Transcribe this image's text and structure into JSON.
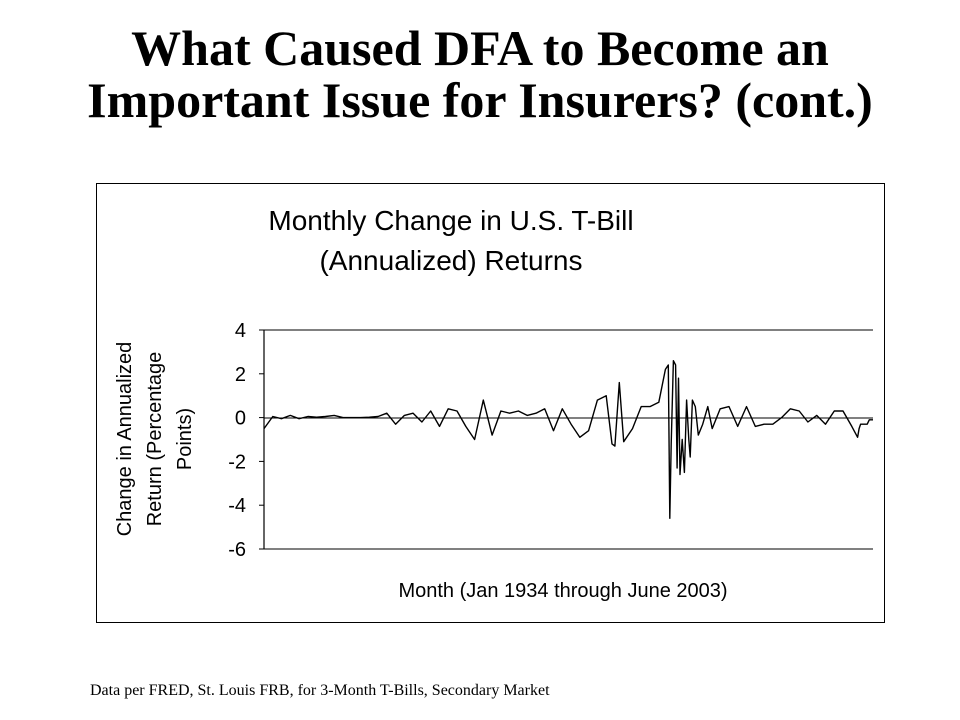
{
  "slide": {
    "title_line1": "What Caused DFA to Become an",
    "title_line2": "Important Issue for Insurers? (cont.)",
    "footnote": "Data per FRED, St. Louis FRB, for 3-Month T-Bills, Secondary Market"
  },
  "chart_data": {
    "type": "line",
    "title_line1": "Monthly Change in U.S. T-Bill",
    "title_line2": "(Annualized) Returns",
    "xlabel": "Month (Jan 1934 through June 2003)",
    "ylabel_lines": [
      "Change in Annualized",
      "Return (Percentage",
      "Points)"
    ],
    "ylim": [
      -6,
      4
    ],
    "yticks": [
      4,
      2,
      0,
      -2,
      -4,
      -6
    ],
    "ytick_labels": [
      "4",
      "2",
      "0",
      "-2",
      "-4",
      "-6"
    ],
    "x_start": "1934-01",
    "x_end": "2003-06",
    "grid": false,
    "legend": "none",
    "series": [
      {
        "color": "#000000",
        "x": [
          "1934-01",
          "1935-01",
          "1936-01",
          "1937-01",
          "1938-01",
          "1939-01",
          "1940-01",
          "1941-01",
          "1942-01",
          "1943-01",
          "1944-01",
          "1945-01",
          "1946-01",
          "1947-01",
          "1948-01",
          "1949-01",
          "1950-01",
          "1951-01",
          "1952-01",
          "1953-01",
          "1954-01",
          "1955-01",
          "1956-01",
          "1957-01",
          "1958-01",
          "1959-01",
          "1960-01",
          "1961-01",
          "1962-01",
          "1963-01",
          "1964-01",
          "1965-01",
          "1966-01",
          "1967-01",
          "1968-01",
          "1969-01",
          "1970-01",
          "1971-01",
          "1972-01",
          "1973-01",
          "1973-09",
          "1974-01",
          "1974-07",
          "1975-01",
          "1976-01",
          "1977-01",
          "1978-01",
          "1979-01",
          "1979-10",
          "1980-02",
          "1980-04",
          "1980-06",
          "1980-09",
          "1980-12",
          "1981-02",
          "1981-04",
          "1981-06",
          "1981-09",
          "1981-12",
          "1982-03",
          "1982-06",
          "1982-08",
          "1982-11",
          "1983-03",
          "1983-07",
          "1984-01",
          "1984-08",
          "1985-02",
          "1986-01",
          "1987-01",
          "1988-01",
          "1989-01",
          "1990-01",
          "1991-01",
          "1992-01",
          "1993-01",
          "1994-01",
          "1995-01",
          "1996-01",
          "1997-01",
          "1998-01",
          "1999-01",
          "2000-01",
          "2001-01",
          "2001-09",
          "2001-11",
          "2002-01",
          "2002-10",
          "2003-01",
          "2003-06"
        ],
        "y": [
          -0.5,
          0.05,
          -0.05,
          0.1,
          -0.05,
          0.05,
          0.02,
          0.05,
          0.1,
          0.0,
          0.0,
          0.0,
          0.02,
          0.05,
          0.2,
          -0.3,
          0.1,
          0.2,
          -0.2,
          0.3,
          -0.4,
          0.4,
          0.3,
          -0.4,
          -1.0,
          0.8,
          -0.8,
          0.3,
          0.2,
          0.3,
          0.1,
          0.2,
          0.4,
          -0.6,
          0.4,
          -0.3,
          -0.9,
          -0.6,
          0.8,
          1.0,
          -1.2,
          -1.3,
          1.6,
          -1.1,
          -0.5,
          0.5,
          0.5,
          0.7,
          2.2,
          2.4,
          -4.6,
          -1.2,
          2.6,
          2.4,
          -2.3,
          1.8,
          -2.6,
          -1.0,
          -2.5,
          0.8,
          -1.0,
          -1.8,
          0.8,
          0.5,
          -0.8,
          -0.3,
          0.5,
          -0.5,
          0.4,
          0.5,
          -0.4,
          0.5,
          -0.4,
          -0.3,
          -0.3,
          0.0,
          0.4,
          0.3,
          -0.2,
          0.1,
          -0.3,
          0.3,
          0.3,
          -0.4,
          -0.9,
          -0.5,
          -0.3,
          -0.3,
          -0.1,
          -0.1
        ]
      }
    ]
  }
}
